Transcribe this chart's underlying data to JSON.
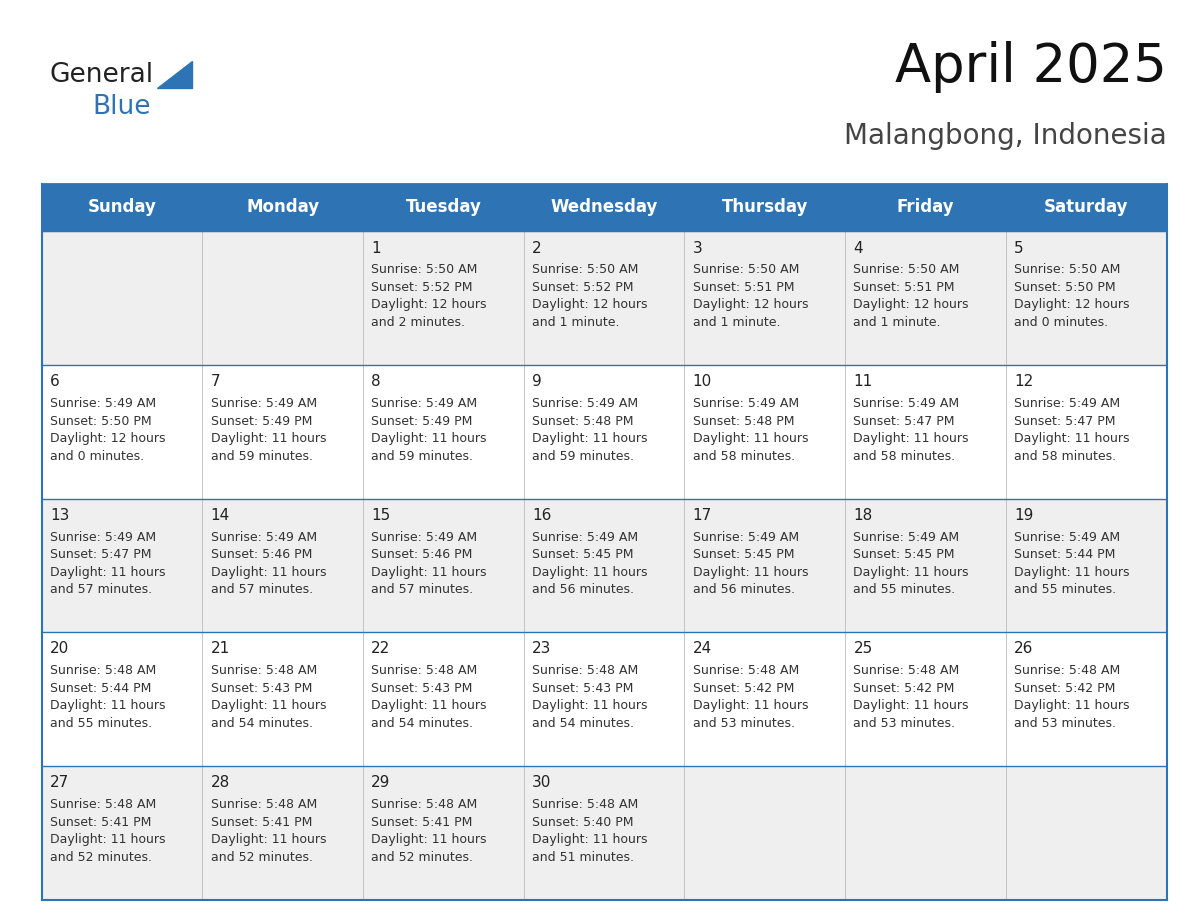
{
  "title": "April 2025",
  "subtitle": "Malangbong, Indonesia",
  "header_bg": "#2E74B5",
  "header_text_color": "#FFFFFF",
  "row_bg_odd": "#EFEFEF",
  "row_bg_even": "#FFFFFF",
  "border_color": "#2E74B5",
  "divider_color": "#BBBBBB",
  "day_headers": [
    "Sunday",
    "Monday",
    "Tuesday",
    "Wednesday",
    "Thursday",
    "Friday",
    "Saturday"
  ],
  "calendar_data": [
    [
      "",
      "",
      "1\nSunrise: 5:50 AM\nSunset: 5:52 PM\nDaylight: 12 hours\nand 2 minutes.",
      "2\nSunrise: 5:50 AM\nSunset: 5:52 PM\nDaylight: 12 hours\nand 1 minute.",
      "3\nSunrise: 5:50 AM\nSunset: 5:51 PM\nDaylight: 12 hours\nand 1 minute.",
      "4\nSunrise: 5:50 AM\nSunset: 5:51 PM\nDaylight: 12 hours\nand 1 minute.",
      "5\nSunrise: 5:50 AM\nSunset: 5:50 PM\nDaylight: 12 hours\nand 0 minutes."
    ],
    [
      "6\nSunrise: 5:49 AM\nSunset: 5:50 PM\nDaylight: 12 hours\nand 0 minutes.",
      "7\nSunrise: 5:49 AM\nSunset: 5:49 PM\nDaylight: 11 hours\nand 59 minutes.",
      "8\nSunrise: 5:49 AM\nSunset: 5:49 PM\nDaylight: 11 hours\nand 59 minutes.",
      "9\nSunrise: 5:49 AM\nSunset: 5:48 PM\nDaylight: 11 hours\nand 59 minutes.",
      "10\nSunrise: 5:49 AM\nSunset: 5:48 PM\nDaylight: 11 hours\nand 58 minutes.",
      "11\nSunrise: 5:49 AM\nSunset: 5:47 PM\nDaylight: 11 hours\nand 58 minutes.",
      "12\nSunrise: 5:49 AM\nSunset: 5:47 PM\nDaylight: 11 hours\nand 58 minutes."
    ],
    [
      "13\nSunrise: 5:49 AM\nSunset: 5:47 PM\nDaylight: 11 hours\nand 57 minutes.",
      "14\nSunrise: 5:49 AM\nSunset: 5:46 PM\nDaylight: 11 hours\nand 57 minutes.",
      "15\nSunrise: 5:49 AM\nSunset: 5:46 PM\nDaylight: 11 hours\nand 57 minutes.",
      "16\nSunrise: 5:49 AM\nSunset: 5:45 PM\nDaylight: 11 hours\nand 56 minutes.",
      "17\nSunrise: 5:49 AM\nSunset: 5:45 PM\nDaylight: 11 hours\nand 56 minutes.",
      "18\nSunrise: 5:49 AM\nSunset: 5:45 PM\nDaylight: 11 hours\nand 55 minutes.",
      "19\nSunrise: 5:49 AM\nSunset: 5:44 PM\nDaylight: 11 hours\nand 55 minutes."
    ],
    [
      "20\nSunrise: 5:48 AM\nSunset: 5:44 PM\nDaylight: 11 hours\nand 55 minutes.",
      "21\nSunrise: 5:48 AM\nSunset: 5:43 PM\nDaylight: 11 hours\nand 54 minutes.",
      "22\nSunrise: 5:48 AM\nSunset: 5:43 PM\nDaylight: 11 hours\nand 54 minutes.",
      "23\nSunrise: 5:48 AM\nSunset: 5:43 PM\nDaylight: 11 hours\nand 54 minutes.",
      "24\nSunrise: 5:48 AM\nSunset: 5:42 PM\nDaylight: 11 hours\nand 53 minutes.",
      "25\nSunrise: 5:48 AM\nSunset: 5:42 PM\nDaylight: 11 hours\nand 53 minutes.",
      "26\nSunrise: 5:48 AM\nSunset: 5:42 PM\nDaylight: 11 hours\nand 53 minutes."
    ],
    [
      "27\nSunrise: 5:48 AM\nSunset: 5:41 PM\nDaylight: 11 hours\nand 52 minutes.",
      "28\nSunrise: 5:48 AM\nSunset: 5:41 PM\nDaylight: 11 hours\nand 52 minutes.",
      "29\nSunrise: 5:48 AM\nSunset: 5:41 PM\nDaylight: 11 hours\nand 52 minutes.",
      "30\nSunrise: 5:48 AM\nSunset: 5:40 PM\nDaylight: 11 hours\nand 51 minutes.",
      "",
      "",
      ""
    ]
  ],
  "title_fontsize": 38,
  "subtitle_fontsize": 20,
  "header_fontsize": 12,
  "day_num_fontsize": 11,
  "cell_fontsize": 9
}
